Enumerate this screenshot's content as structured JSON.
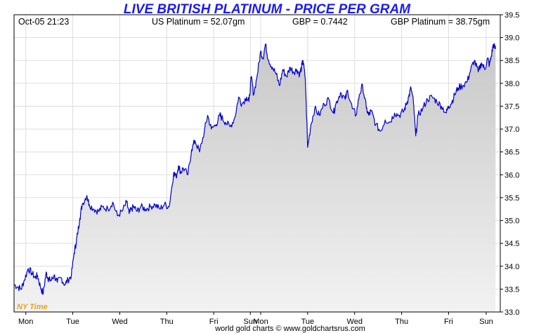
{
  "chart_data": {
    "type": "line",
    "title": "LIVE BRITISH PLATINUM - PRICE PER GRAM",
    "header": {
      "datetime": "Oct-05  21:23",
      "us_platinum": "US Platinum = 52.07gm",
      "gbp_rate": "GBP = 0.7442",
      "gbp_platinum": "GBP Platinum = 38.75gm"
    },
    "ylim": [
      33.0,
      39.5
    ],
    "y_ticks": [
      "33.0",
      "33.5",
      "34.0",
      "34.5",
      "35.0",
      "35.5",
      "36.0",
      "36.5",
      "37.0",
      "37.5",
      "38.0",
      "38.5",
      "39.0",
      "39.5"
    ],
    "xlim": [
      0,
      10.35
    ],
    "x_ticks": [
      {
        "label": "Mon",
        "x": 0.25
      },
      {
        "label": "Tue",
        "x": 1.25
      },
      {
        "label": "Wed",
        "x": 2.25
      },
      {
        "label": "Thu",
        "x": 3.25
      },
      {
        "label": "Fri",
        "x": 4.25
      },
      {
        "label": "Sun",
        "x": 5.03
      },
      {
        "label": "Mon",
        "x": 5.25
      },
      {
        "label": "Tue",
        "x": 6.25
      },
      {
        "label": "Wed",
        "x": 7.25
      },
      {
        "label": "Thu",
        "x": 8.25
      },
      {
        "label": "Fri",
        "x": 9.25
      },
      {
        "label": "Sun",
        "x": 10.05
      }
    ],
    "series": [
      {
        "color": "#0000cc",
        "x": [
          0,
          0.08,
          0.15,
          0.22,
          0.3,
          0.38,
          0.45,
          0.5,
          0.56,
          0.62,
          0.68,
          0.72,
          0.75,
          0.8,
          0.85,
          0.92,
          1.0,
          1.08,
          1.15,
          1.22,
          1.28,
          1.32,
          1.35,
          1.4,
          1.45,
          1.55,
          1.6,
          1.7,
          1.8,
          1.88,
          2.0,
          2.1,
          2.2,
          2.3,
          2.4,
          2.45,
          2.5,
          2.55,
          2.62,
          2.7,
          2.8,
          2.9,
          3.0,
          3.1,
          3.2,
          3.3,
          3.4,
          3.45,
          3.5,
          3.55,
          3.6,
          3.7,
          3.78,
          3.85,
          3.95,
          4.05,
          4.12,
          4.2,
          4.3,
          4.38,
          4.42,
          4.5,
          4.6,
          4.7,
          4.78,
          4.85,
          4.95,
          5.0,
          5.05,
          5.1,
          5.18,
          5.25,
          5.3,
          5.35,
          5.42,
          5.5,
          5.58,
          5.65,
          5.72,
          5.8,
          5.88,
          5.95,
          6.02,
          6.08,
          6.12,
          6.15,
          6.2,
          6.25,
          6.32,
          6.4,
          6.5,
          6.6,
          6.7,
          6.8,
          6.85,
          6.95,
          7.05,
          7.1,
          7.2,
          7.28,
          7.35,
          7.42,
          7.5,
          7.55,
          7.6,
          7.7,
          7.8,
          7.9,
          8.0,
          8.1,
          8.2,
          8.3,
          8.35,
          8.4,
          8.45,
          8.5,
          8.55,
          8.6,
          8.7,
          8.8,
          8.9,
          9.0,
          9.1,
          9.2,
          9.25,
          9.3,
          9.38,
          9.45,
          9.55,
          9.65,
          9.72,
          9.8,
          9.88,
          9.95,
          10.02,
          10.08,
          10.12,
          10.16,
          10.2,
          10.25
        ],
        "values": [
          33.6,
          33.55,
          33.5,
          33.7,
          33.95,
          33.85,
          33.75,
          33.8,
          33.55,
          33.4,
          33.85,
          33.75,
          33.7,
          33.7,
          33.8,
          33.65,
          33.75,
          33.6,
          33.7,
          33.8,
          34.3,
          34.5,
          34.7,
          35.05,
          35.35,
          35.55,
          35.35,
          35.25,
          35.2,
          35.3,
          35.25,
          35.4,
          35.1,
          35.2,
          35.4,
          35.15,
          35.25,
          35.3,
          35.2,
          35.3,
          35.25,
          35.3,
          35.35,
          35.25,
          35.35,
          35.3,
          36.05,
          35.95,
          36.2,
          36.05,
          36.15,
          36.0,
          36.55,
          36.75,
          36.5,
          36.95,
          37.3,
          37.0,
          37.1,
          37.3,
          37.25,
          37.15,
          37.05,
          37.25,
          37.7,
          37.55,
          37.7,
          37.6,
          38.15,
          37.75,
          38.2,
          38.7,
          38.55,
          38.85,
          38.5,
          38.35,
          38.2,
          37.95,
          38.3,
          38.15,
          38.35,
          38.25,
          38.3,
          38.2,
          38.35,
          38.5,
          38.1,
          36.6,
          37.1,
          37.45,
          37.3,
          37.55,
          37.65,
          37.35,
          37.55,
          37.8,
          37.65,
          37.85,
          37.45,
          37.3,
          37.75,
          37.95,
          37.45,
          37.3,
          37.4,
          37.1,
          36.95,
          37.2,
          37.15,
          37.35,
          37.3,
          37.4,
          37.55,
          37.7,
          37.9,
          37.6,
          36.85,
          37.3,
          37.45,
          37.65,
          37.7,
          37.6,
          37.5,
          37.35,
          37.5,
          37.55,
          37.75,
          37.9,
          37.95,
          38.05,
          38.3,
          38.5,
          38.25,
          38.45,
          38.3,
          38.55,
          38.4,
          38.6,
          38.85,
          38.75
        ]
      }
    ],
    "annotation": "NY Time",
    "footer": "world gold charts © www.goldchartsrus.com",
    "grid": true,
    "line_color": "#0000cc",
    "fill_top_color": "#c8c8c8",
    "fill_bottom_color": "#f2f2f2"
  }
}
